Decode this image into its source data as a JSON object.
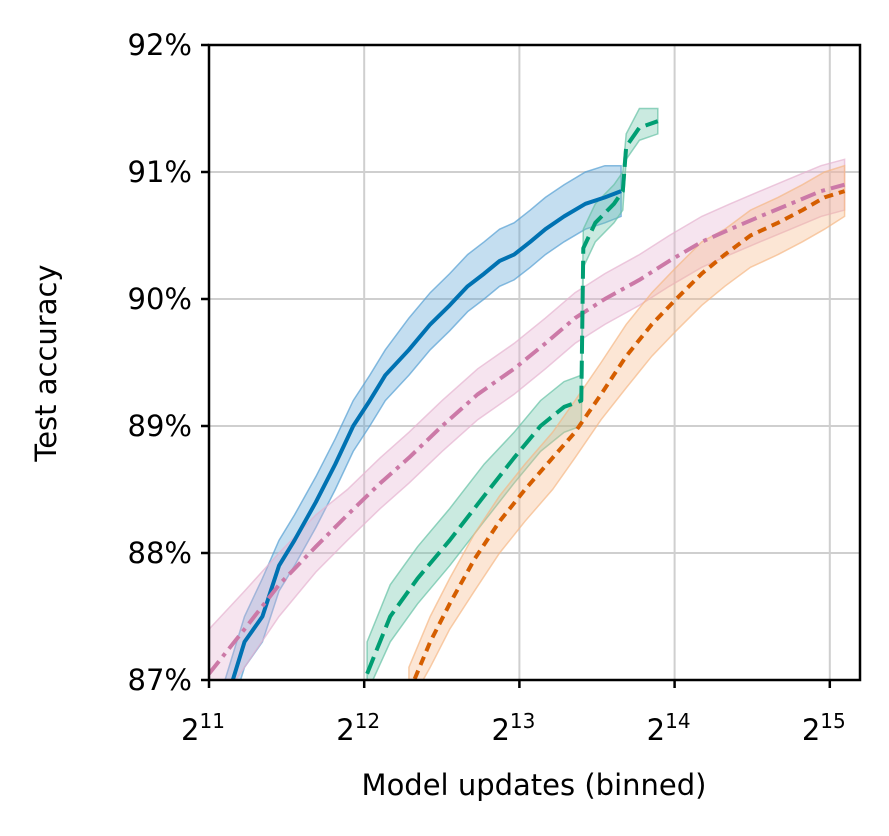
{
  "chart_data": {
    "type": "line",
    "xlabel": "Model updates (binned)",
    "ylabel": "Test accuracy",
    "x_scale": "log2",
    "xlim": [
      2048,
      37500
    ],
    "ylim": [
      87,
      92
    ],
    "x_ticks": [
      {
        "value": 2048,
        "base": "2",
        "exp": "11"
      },
      {
        "value": 4096,
        "base": "2",
        "exp": "12"
      },
      {
        "value": 8192,
        "base": "2",
        "exp": "13"
      },
      {
        "value": 16384,
        "base": "2",
        "exp": "14"
      },
      {
        "value": 32768,
        "base": "2",
        "exp": "15"
      }
    ],
    "y_ticks": [
      {
        "value": 87,
        "label": "87%"
      },
      {
        "value": 88,
        "label": "88%"
      },
      {
        "value": 89,
        "label": "89%"
      },
      {
        "value": 90,
        "label": "90%"
      },
      {
        "value": 91,
        "label": "91%"
      },
      {
        "value": 92,
        "label": "92%"
      }
    ],
    "grid": true,
    "series": [
      {
        "color": "#0072b2",
        "band_color": "#56a0d3",
        "dash": "solid",
        "x": [
          2200,
          2400,
          2600,
          2800,
          3000,
          3300,
          3600,
          3900,
          4200,
          4500,
          5000,
          5500,
          6000,
          6500,
          7000,
          7500,
          8000,
          8600,
          9200,
          10000,
          11000,
          12000,
          12900
        ],
        "y": [
          86.8,
          87.3,
          87.5,
          87.9,
          88.1,
          88.4,
          88.7,
          89.0,
          89.2,
          89.4,
          89.6,
          89.8,
          89.95,
          90.1,
          90.2,
          90.3,
          90.35,
          90.45,
          90.55,
          90.65,
          90.75,
          90.8,
          90.85
        ],
        "lower": [
          86.6,
          87.1,
          87.3,
          87.7,
          87.9,
          88.2,
          88.5,
          88.8,
          89.0,
          89.2,
          89.4,
          89.6,
          89.75,
          89.9,
          90.0,
          90.1,
          90.15,
          90.25,
          90.35,
          90.45,
          90.55,
          90.6,
          90.65
        ],
        "upper": [
          87.0,
          87.5,
          87.8,
          88.1,
          88.3,
          88.6,
          88.9,
          89.2,
          89.4,
          89.6,
          89.85,
          90.05,
          90.2,
          90.35,
          90.45,
          90.55,
          90.6,
          90.7,
          90.8,
          90.9,
          91.0,
          91.05,
          91.05
        ]
      },
      {
        "color": "#cc79a7",
        "band_color": "#e6b3d0",
        "dash": "dashdot",
        "x": [
          2048,
          2400,
          2800,
          3300,
          3800,
          4400,
          5000,
          5800,
          6800,
          8000,
          9200,
          10500,
          12000,
          14000,
          16000,
          18500,
          21000,
          24000,
          27500,
          31500,
          35000
        ],
        "y": [
          87.05,
          87.4,
          87.75,
          88.05,
          88.3,
          88.55,
          88.75,
          89.0,
          89.25,
          89.45,
          89.65,
          89.85,
          90.0,
          90.15,
          90.3,
          90.45,
          90.55,
          90.65,
          90.75,
          90.85,
          90.9
        ],
        "lower": [
          86.7,
          87.1,
          87.5,
          87.85,
          88.1,
          88.35,
          88.55,
          88.8,
          89.05,
          89.25,
          89.45,
          89.65,
          89.8,
          89.95,
          90.1,
          90.25,
          90.35,
          90.45,
          90.55,
          90.65,
          90.7
        ],
        "upper": [
          87.4,
          87.7,
          88.0,
          88.3,
          88.5,
          88.75,
          88.95,
          89.2,
          89.45,
          89.65,
          89.85,
          90.05,
          90.2,
          90.35,
          90.5,
          90.65,
          90.75,
          90.85,
          90.95,
          91.05,
          91.1
        ]
      },
      {
        "color": "#009e73",
        "band_color": "#66c2a5",
        "dash": "dashed",
        "x": [
          4150,
          4600,
          5200,
          6000,
          7000,
          8000,
          9000,
          10000,
          10800,
          10900,
          11500,
          12500,
          13000,
          13200,
          14000,
          15200
        ],
        "y": [
          87.05,
          87.5,
          87.8,
          88.1,
          88.45,
          88.75,
          89.0,
          89.15,
          89.2,
          90.4,
          90.6,
          90.75,
          90.85,
          91.2,
          91.35,
          91.4
        ],
        "lower": [
          86.9,
          87.3,
          87.6,
          87.9,
          88.25,
          88.55,
          88.8,
          88.95,
          89.0,
          90.25,
          90.45,
          90.6,
          90.7,
          91.1,
          91.25,
          91.3
        ],
        "upper": [
          87.3,
          87.75,
          88.05,
          88.35,
          88.7,
          88.95,
          89.2,
          89.35,
          89.4,
          90.55,
          90.75,
          90.9,
          91.0,
          91.3,
          91.5,
          91.5
        ]
      },
      {
        "color": "#d55e00",
        "band_color": "#f5b886",
        "dash": "dotted",
        "x": [
          5000,
          5500,
          6000,
          6700,
          7500,
          8400,
          9500,
          10500,
          11800,
          13200,
          14800,
          16500,
          18500,
          20500,
          23000,
          26000,
          29000,
          32000,
          35000
        ],
        "y": [
          86.9,
          87.3,
          87.6,
          87.95,
          88.25,
          88.5,
          88.75,
          88.95,
          89.25,
          89.55,
          89.8,
          90.0,
          90.2,
          90.35,
          90.5,
          90.6,
          90.7,
          90.8,
          90.85
        ],
        "lower": [
          86.8,
          87.1,
          87.4,
          87.7,
          88.0,
          88.25,
          88.5,
          88.75,
          89.05,
          89.3,
          89.55,
          89.75,
          89.95,
          90.1,
          90.25,
          90.35,
          90.45,
          90.55,
          90.65
        ],
        "upper": [
          87.1,
          87.5,
          87.8,
          88.15,
          88.45,
          88.7,
          88.95,
          89.2,
          89.5,
          89.8,
          90.05,
          90.25,
          90.45,
          90.55,
          90.7,
          90.8,
          90.9,
          91.0,
          91.05
        ]
      }
    ]
  }
}
